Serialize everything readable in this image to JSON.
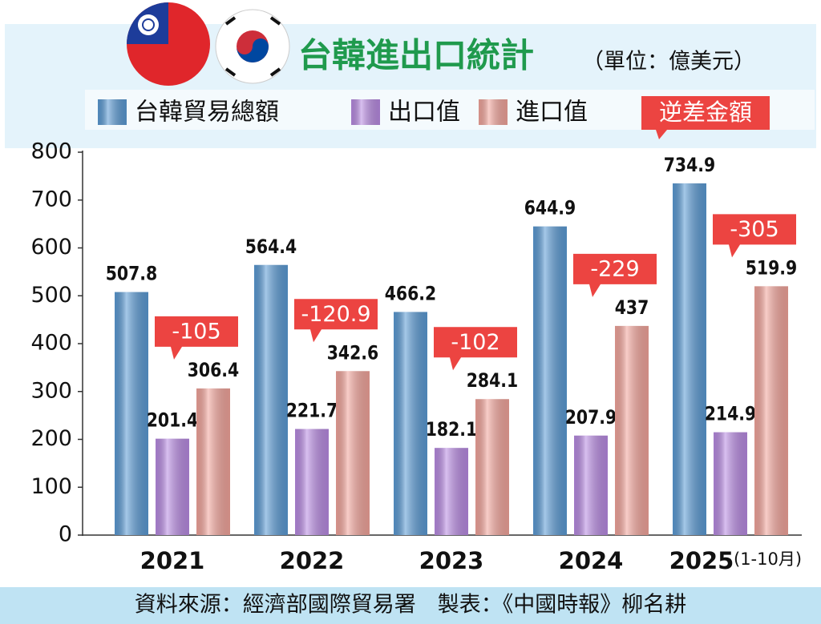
{
  "chart_data": {
    "type": "bar",
    "title": "台韓進出口統計",
    "unit": "（單位：億美元）",
    "categories": [
      "2021",
      "2022",
      "2023",
      "2024",
      "2025"
    ],
    "category_notes": [
      null,
      null,
      null,
      null,
      "(1-10月)"
    ],
    "series": [
      {
        "name": "台韓貿易總額",
        "color": "#5b9bd5",
        "values": [
          507.8,
          564.4,
          466.2,
          644.9,
          734.9
        ]
      },
      {
        "name": "出口值",
        "color": "#b98be3",
        "values": [
          201.4,
          221.7,
          182.1,
          207.9,
          214.9
        ]
      },
      {
        "name": "進口值",
        "color": "#f3a59c",
        "values": [
          306.4,
          342.6,
          284.1,
          437,
          519.9
        ]
      }
    ],
    "deficit": {
      "name": "逆差金額",
      "color": "#ec4441",
      "values": [
        -105,
        -120.9,
        -102,
        -229,
        -305
      ]
    },
    "ylim": [
      0,
      800
    ],
    "yticks": [
      0,
      100,
      200,
      300,
      400,
      500,
      600,
      700,
      800
    ],
    "source": "資料來源：經濟部國際貿易署　製表：《中國時報》柳名耕"
  }
}
